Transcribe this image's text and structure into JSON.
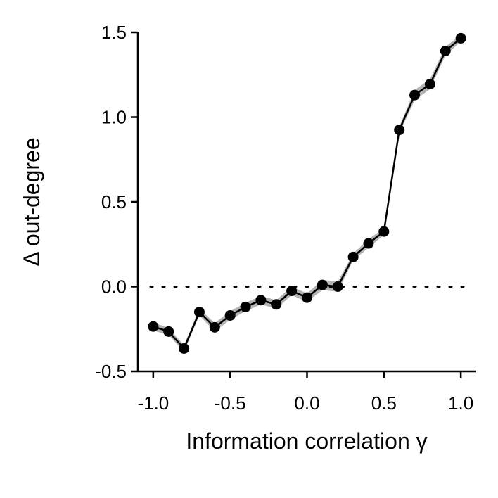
{
  "chart_data": {
    "type": "line",
    "title": "",
    "xlabel": "Information correlation γ",
    "ylabel": "Δ out-degree",
    "xlim": [
      -1.1,
      1.1
    ],
    "ylim": [
      -0.5,
      1.5
    ],
    "xticks": [
      -1.0,
      -0.5,
      0.0,
      0.5,
      1.0
    ],
    "xtick_labels": [
      "-1.0",
      "-0.5",
      "0.0",
      "0.5",
      "1.0"
    ],
    "yticks": [
      -0.5,
      0.0,
      0.5,
      1.0,
      1.5
    ],
    "ytick_labels": [
      "-0.5",
      "0.0",
      "0.5",
      "1.0",
      "1.5"
    ],
    "grid": false,
    "reference_line": {
      "y": 0.0,
      "style": "dotted",
      "color": "#000000"
    },
    "series": [
      {
        "x": [
          -1.0,
          -0.9,
          -0.8,
          -0.7,
          -0.6,
          -0.5,
          -0.4,
          -0.3,
          -0.2,
          -0.1,
          0.0,
          0.1,
          0.2,
          0.3,
          0.4,
          0.5,
          0.6,
          0.7,
          0.8,
          0.9,
          1.0
        ],
        "values": [
          -0.235,
          -0.265,
          -0.365,
          -0.15,
          -0.24,
          -0.17,
          -0.12,
          -0.08,
          -0.105,
          -0.025,
          -0.065,
          0.01,
          0.0,
          0.175,
          0.255,
          0.325,
          0.925,
          1.13,
          1.195,
          1.39,
          1.465
        ],
        "error": [
          0.025,
          0.02,
          0.02,
          0.02,
          0.025,
          0.025,
          0.025,
          0.025,
          0.025,
          0.025,
          0.025,
          0.03,
          0.03,
          0.02,
          0.025,
          0.02,
          0.02,
          0.03,
          0.03,
          0.025,
          0.02
        ],
        "color": "#000000",
        "band_color": "#b3b3b3"
      }
    ]
  }
}
